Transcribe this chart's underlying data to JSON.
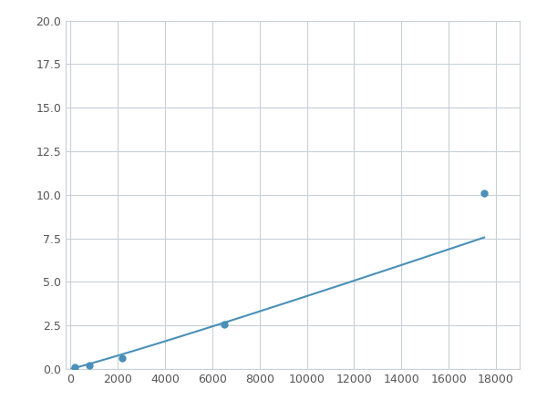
{
  "x_points": [
    200,
    800,
    2200,
    6500,
    17500
  ],
  "y_points": [
    0.1,
    0.2,
    0.65,
    2.55,
    10.1
  ],
  "line_color": "#4a90b8",
  "marker_color": "#4a90b8",
  "marker_size": 5,
  "linewidth": 1.5,
  "xlim": [
    -200,
    19000
  ],
  "ylim": [
    0,
    20
  ],
  "xticks": [
    0,
    2000,
    4000,
    6000,
    8000,
    10000,
    12000,
    14000,
    16000,
    18000
  ],
  "yticks": [
    0.0,
    2.5,
    5.0,
    7.5,
    10.0,
    12.5,
    15.0,
    17.5,
    20.0
  ],
  "grid_color": "#c8d0d8",
  "background_color": "#ffffff",
  "figure_bg": "#ffffff",
  "power_a": 0.000182,
  "power_b": 1.38
}
